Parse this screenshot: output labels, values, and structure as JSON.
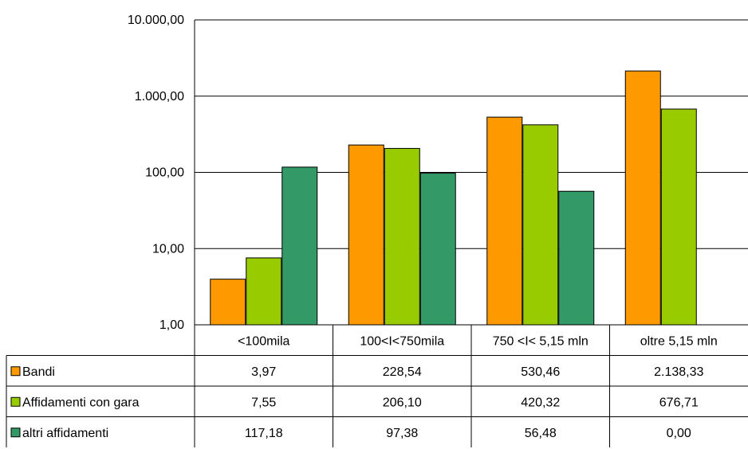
{
  "chart_data": {
    "type": "bar",
    "y_scale": "log",
    "ylim": [
      1,
      10000
    ],
    "y_ticks": [
      "1,00",
      "10,00",
      "100,00",
      "1.000,00",
      "10.000,00"
    ],
    "categories": [
      "<100mila",
      "100<I<750mila",
      "750 <I< 5,15 mln",
      "oltre 5,15 mln"
    ],
    "series": [
      {
        "name": "Bandi",
        "color": "#FF9900",
        "values": [
          3.97,
          228.54,
          530.46,
          2138.33
        ],
        "labels": [
          "3,97",
          "228,54",
          "530,46",
          "2.138,33"
        ]
      },
      {
        "name": "Affidamenti con gara",
        "color": "#99CC00",
        "values": [
          7.55,
          206.1,
          420.32,
          676.71
        ],
        "labels": [
          "7,55",
          "206,10",
          "420,32",
          "676,71"
        ]
      },
      {
        "name": "altri affidamenti",
        "color": "#339966",
        "values": [
          117.18,
          97.38,
          56.48,
          0.0
        ],
        "labels": [
          "117,18",
          "97,38",
          "56,48",
          "0,00"
        ]
      }
    ],
    "grid": true,
    "legend": "data-table"
  }
}
